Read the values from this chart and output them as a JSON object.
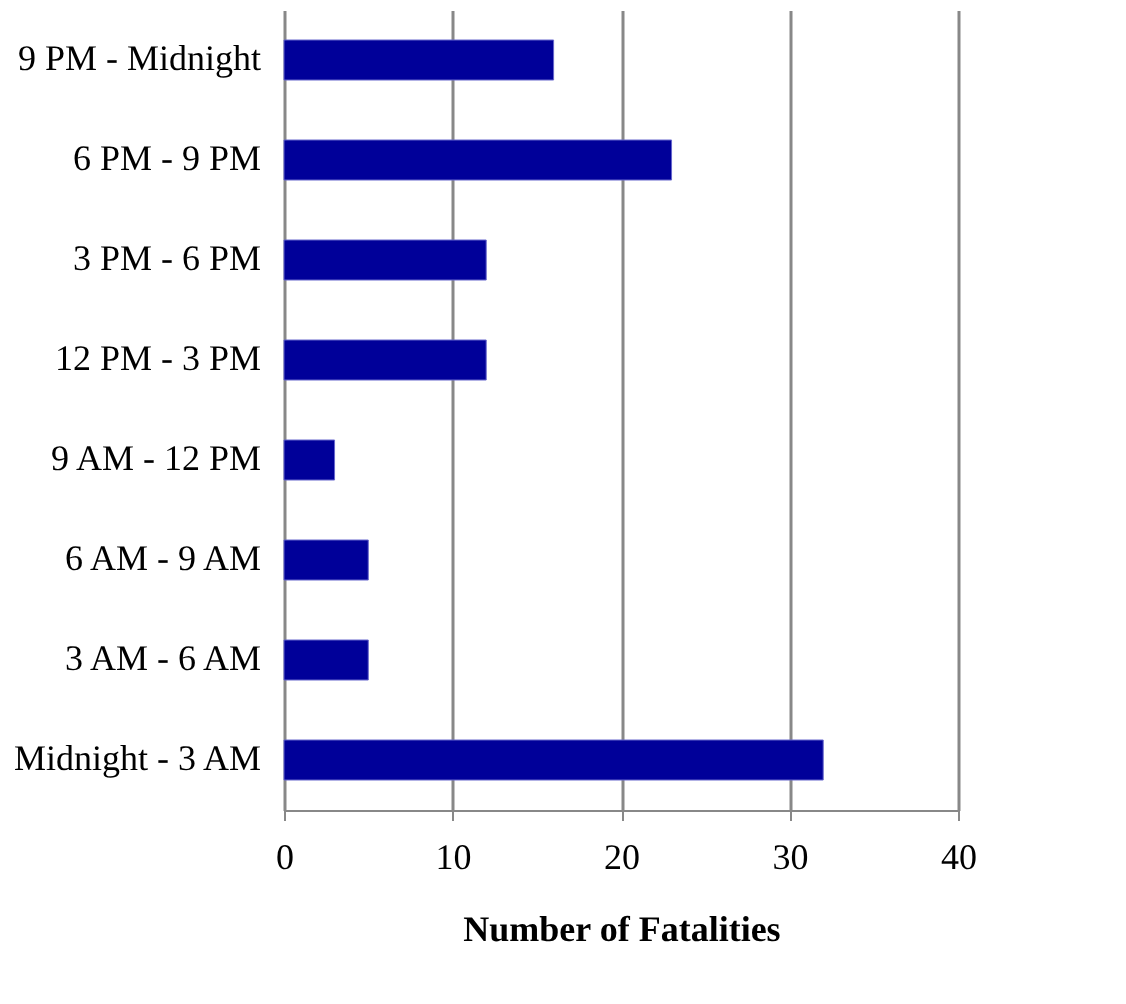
{
  "chart_data": {
    "type": "bar",
    "orientation": "horizontal",
    "xlabel": "Number of Fatalities",
    "categories": [
      "9 PM - Midnight",
      "6 PM - 9 PM",
      "3 PM - 6 PM",
      "12 PM - 3 PM",
      "9 AM - 12 PM",
      "6 AM - 9 AM",
      "3 AM - 6 AM",
      "Midnight - 3 AM"
    ],
    "values": [
      16,
      23,
      12,
      12,
      3,
      5,
      5,
      32
    ],
    "color": "#000099",
    "xlim": [
      0,
      40
    ],
    "xticks": [
      0,
      10,
      20,
      30,
      40
    ],
    "grid": "x"
  }
}
